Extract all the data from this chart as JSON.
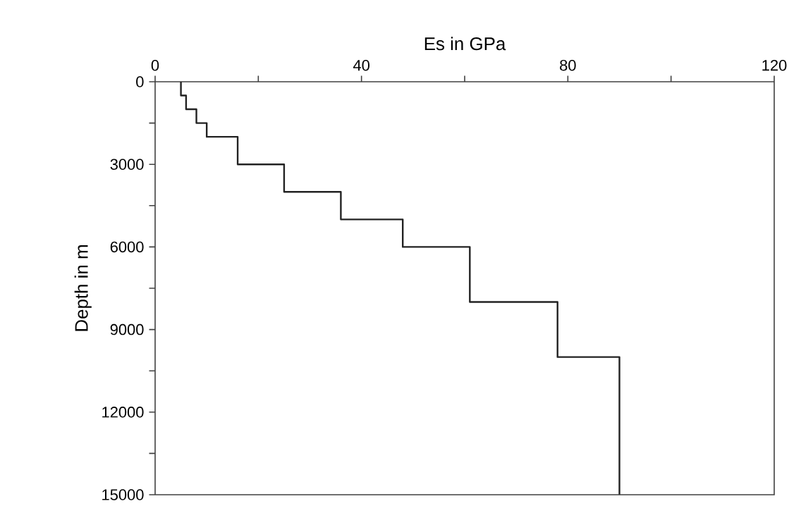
{
  "chart_data": {
    "type": "line",
    "xlabel": "Es in GPa",
    "ylabel": "Depth in m",
    "xlim": [
      0,
      120
    ],
    "xticks": [
      0,
      {
        "value": 20,
        "label": null
      },
      40,
      {
        "value": 60,
        "label": null
      },
      80,
      {
        "value": 100,
        "label": null
      },
      120
    ],
    "ylim": [
      15000,
      0
    ],
    "yticks": [
      0,
      {
        "value": 1500,
        "label": null
      },
      3000,
      {
        "value": 4500,
        "label": null
      },
      6000,
      {
        "value": 7500,
        "label": null
      },
      9000,
      {
        "value": 10500,
        "label": null
      },
      12000,
      {
        "value": 13500,
        "label": null
      },
      15000
    ],
    "x": [
      5,
      5,
      6,
      6,
      8,
      8,
      10,
      10,
      16,
      16,
      25,
      25,
      36,
      36,
      48,
      48,
      61,
      61,
      78,
      78,
      90,
      90
    ],
    "values": [
      0,
      500,
      500,
      1000,
      1000,
      1500,
      1500,
      2000,
      2000,
      3000,
      3000,
      4000,
      4000,
      5000,
      5000,
      6000,
      6000,
      8000,
      8000,
      10000,
      10000,
      15000
    ],
    "color": "#222222",
    "grid": false,
    "marker": "none",
    "line_style": "solid"
  }
}
